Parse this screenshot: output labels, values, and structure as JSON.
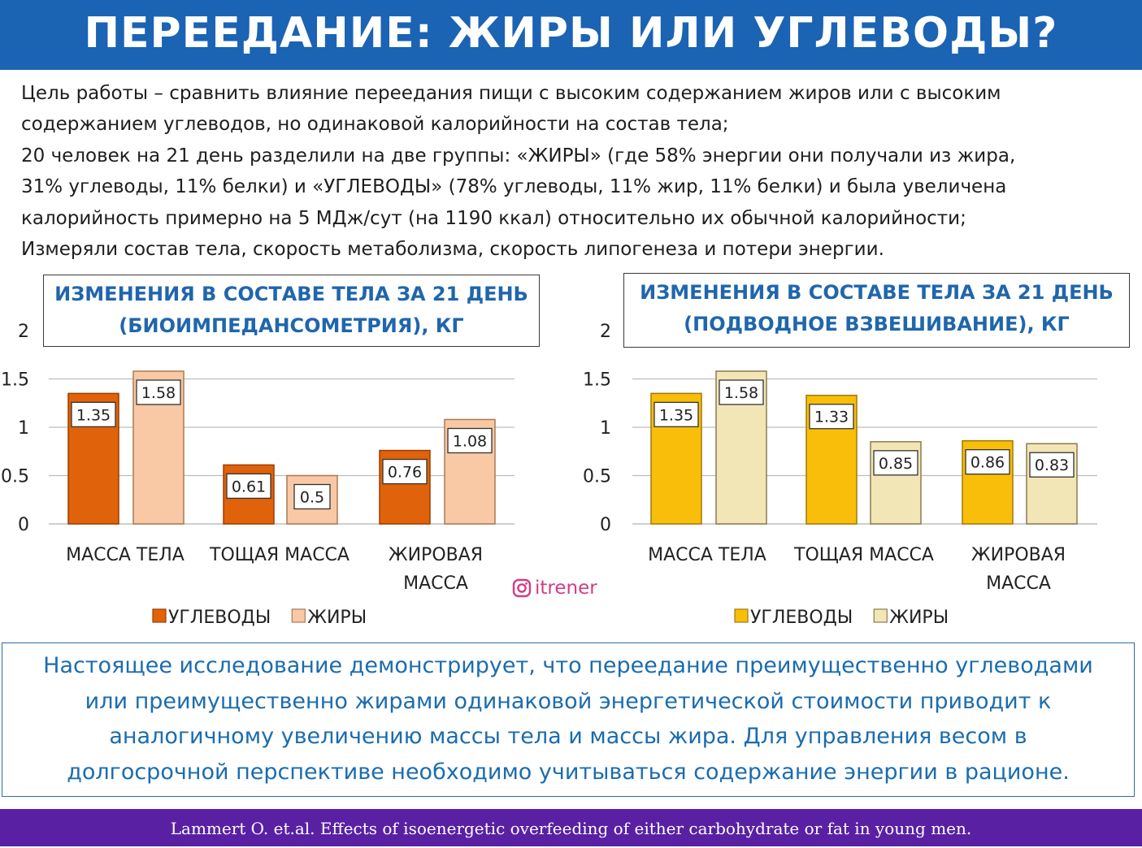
{
  "header": {
    "title": "ПЕРЕЕДАНИЕ: ЖИРЫ ИЛИ УГЛЕВОДЫ?"
  },
  "intro": {
    "lines": [
      "Цель работы – сравнить влияние переедания пищи с высоким содержанием жиров или с высоким",
      "содержанием углеводов, но одинаковой калорийности на состав тела;",
      "20 человек на 21 день разделили на две группы: «ЖИРЫ» (где 58% энергии они получали из жира,",
      "31% углеводы, 11% белки) и «УГЛЕВОДЫ» (78% углеводы, 11% жир, 11% белки) и была увеличена",
      "калорийность примерно на 5 МДж/сут (на 1190 ккал) относительно их обычной калорийности;",
      "Измеряли состав тела, скорость метаболизма, скорость липогенеза и потери энергии."
    ]
  },
  "watermark": {
    "text": "itrener",
    "icon": "instagram-icon",
    "color": "#d23c86"
  },
  "conclusion": {
    "lines": [
      "Настоящее исследование демонстрирует, что переедание преимущественно углеводами",
      "или преимущественно жирами одинаковой энергетической стоимости приводит к",
      "аналогичному увеличению массы тела и массы жира. Для управления весом в",
      "долгосрочной перспективе необходимо учитываться содержание энергии в рационе."
    ]
  },
  "footer": {
    "citation": "Lammert O. et.al. Effects of isoenergetic overfeeding of either carbohydrate or fat in young men."
  },
  "colors": {
    "header_bg": "#1b63b3",
    "footer_bg": "#5a20a4",
    "title_text": "#1f66ad",
    "chart1_carbs": "#e0620a",
    "chart1_fats": "#f8c9a4",
    "chart2_carbs": "#f9be0a",
    "chart2_fats": "#f3e6b6"
  },
  "chart_data": [
    {
      "type": "bar",
      "title_lines": [
        "ИЗМЕНЕНИЯ В СОСТАВЕ ТЕЛА ЗА 21 ДЕНЬ",
        "(БИОИМПЕДАНСОМЕТРИЯ), КГ"
      ],
      "categories": [
        [
          "МАССА ТЕЛА"
        ],
        [
          "ТОЩАЯ МАССА"
        ],
        [
          "ЖИРОВАЯ",
          "МАССА"
        ]
      ],
      "series": [
        {
          "name": "УГЛЕВОДЫ",
          "values": [
            1.35,
            0.61,
            0.76
          ],
          "color": "#e0620a",
          "border": "#9c3d02"
        },
        {
          "name": "ЖИРЫ",
          "values": [
            1.58,
            0.5,
            1.08
          ],
          "color": "#f8c9a4",
          "border": "#a87a55"
        }
      ],
      "data_labels": [
        [
          "1.35",
          "0.61",
          "0.76"
        ],
        [
          "1.58",
          "0.5",
          "1.08"
        ]
      ],
      "yticks": [
        "0",
        "0.5",
        "1",
        "1.5",
        "2"
      ],
      "ylim": [
        0,
        2
      ],
      "grid": true,
      "legend": "bottom"
    },
    {
      "type": "bar",
      "title_lines": [
        "ИЗМЕНЕНИЯ В СОСТАВЕ ТЕЛА ЗА 21 ДЕНЬ",
        "(ПОДВОДНОЕ ВЗВЕШИВАНИЕ), КГ"
      ],
      "categories": [
        [
          "МАССА ТЕЛА"
        ],
        [
          "ТОЩАЯ МАССА"
        ],
        [
          "ЖИРОВАЯ",
          "МАССА"
        ]
      ],
      "series": [
        {
          "name": "УГЛЕВОДЫ",
          "values": [
            1.35,
            1.33,
            0.86
          ],
          "color": "#f9be0a",
          "border": "#a07a06"
        },
        {
          "name": "ЖИРЫ",
          "values": [
            1.58,
            0.85,
            0.83
          ],
          "color": "#f3e6b6",
          "border": "#8a7c4e"
        }
      ],
      "data_labels": [
        [
          "1.35",
          "1.33",
          "0.86"
        ],
        [
          "1.58",
          "0.85",
          "0.83"
        ]
      ],
      "yticks": [
        "0",
        "0.5",
        "1",
        "1.5",
        "2"
      ],
      "ylim": [
        0,
        2
      ],
      "grid": true,
      "legend": "bottom"
    }
  ]
}
